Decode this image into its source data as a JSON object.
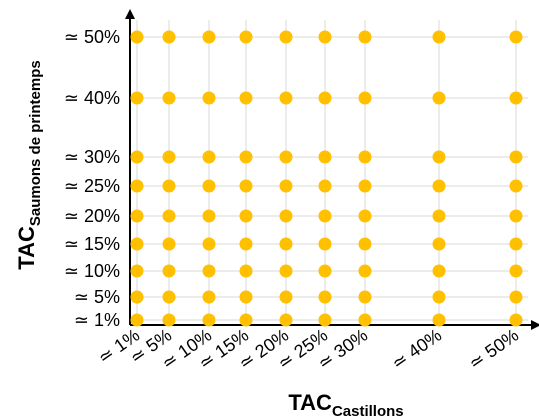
{
  "chart_data": {
    "type": "scatter",
    "title": "",
    "xlabel": {
      "main": "TAC",
      "sub": "Castillons"
    },
    "ylabel": {
      "main": "TAC",
      "sub": "Saumons de printemps"
    },
    "x_ticks": [
      1,
      5,
      10,
      15,
      20,
      25,
      30,
      40,
      50
    ],
    "x_tick_labels": [
      "≃ 1%",
      "≃ 5%",
      "≃ 10%",
      "≃ 15%",
      "≃ 20%",
      "≃ 25%",
      "≃ 30%",
      "≃ 40%",
      "≃ 50%"
    ],
    "y_ticks": [
      1,
      5,
      10,
      15,
      20,
      25,
      30,
      40,
      50
    ],
    "y_tick_labels": [
      "≃ 1%",
      "≃ 5%",
      "≃ 10%",
      "≃ 15%",
      "≃ 20%",
      "≃ 25%",
      "≃ 30%",
      "≃ 40%",
      "≃ 50%"
    ],
    "x_values": [
      1,
      5,
      10,
      15,
      20,
      25,
      30,
      40,
      50
    ],
    "y_values": [
      1,
      5,
      10,
      15,
      20,
      25,
      30,
      40,
      50
    ],
    "points": "full grid: every x value paired with every y value",
    "grid": true,
    "legend": "none",
    "colors": {
      "marker": "#FFC000",
      "grid": "#d9d9d9",
      "axis": "#000000"
    }
  }
}
